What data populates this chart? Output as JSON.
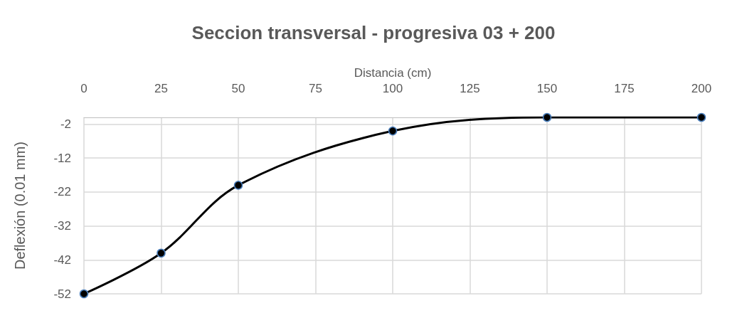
{
  "chart_data": {
    "type": "line",
    "title": "Seccion transversal - progresiva 03 + 200",
    "xlabel": "Distancia (cm)",
    "ylabel": "Deflexión (0.01 mm)",
    "x": [
      0,
      25,
      50,
      100,
      150,
      200
    ],
    "series": [
      {
        "color": "#000000",
        "values": [
          -52,
          -40,
          -20,
          -4,
          0,
          0
        ]
      }
    ],
    "xlim": [
      0,
      200
    ],
    "xticks": [
      0,
      25,
      50,
      75,
      100,
      125,
      150,
      175,
      200
    ],
    "ylim": [
      -52,
      0
    ],
    "yticks": [
      -52,
      -42,
      -32,
      -22,
      -12,
      -2
    ],
    "grid": true,
    "marker": "circle",
    "line_style": "solid"
  }
}
